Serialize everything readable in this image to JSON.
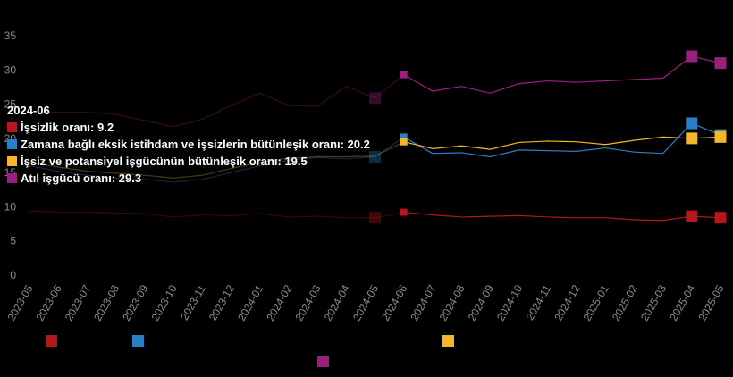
{
  "chart_data": {
    "type": "line",
    "x": [
      "2023-05",
      "2023-06",
      "2023-07",
      "2023-08",
      "2023-09",
      "2023-10",
      "2023-11",
      "2023-12",
      "2024-01",
      "2024-02",
      "2024-03",
      "2024-04",
      "2024-05",
      "2024-06",
      "2024-07",
      "2024-08",
      "2024-09",
      "2024-10",
      "2024-11",
      "2024-12",
      "2025-01",
      "2025-02",
      "2025-03",
      "2025-04",
      "2025-05"
    ],
    "ylim": [
      0,
      35
    ],
    "yticks": [
      "0",
      "5",
      "10",
      "15",
      "20",
      "25",
      "30",
      "35"
    ],
    "grid": false,
    "highlight_index": 13,
    "series": [
      {
        "key": "s1",
        "color": "#b5171c",
        "values": [
          9.4,
          9.2,
          9.2,
          9.1,
          9.0,
          8.5,
          8.8,
          8.7,
          9.0,
          8.5,
          8.6,
          8.4,
          8.4,
          9.2,
          8.8,
          8.5,
          8.6,
          8.7,
          8.5,
          8.4,
          8.4,
          8.1,
          8.0,
          8.6,
          8.4
        ]
      },
      {
        "key": "s2",
        "color": "#2a7fc7",
        "values": [
          16.0,
          15.2,
          14.6,
          14.2,
          14.0,
          13.6,
          14.0,
          15.0,
          16.0,
          16.8,
          17.2,
          17.0,
          17.3,
          20.2,
          17.8,
          17.9,
          17.3,
          18.3,
          18.2,
          18.1,
          18.6,
          18.0,
          17.8,
          22.2,
          20.5
        ]
      },
      {
        "key": "s3",
        "color": "#f5b62c",
        "values": [
          16.5,
          15.8,
          15.2,
          14.9,
          14.6,
          14.2,
          14.6,
          15.6,
          16.5,
          17.1,
          17.3,
          17.3,
          17.4,
          19.5,
          18.5,
          18.9,
          18.4,
          19.4,
          19.6,
          19.5,
          19.1,
          19.7,
          20.2,
          20.0,
          20.2
        ]
      },
      {
        "key": "s4",
        "color": "#9b1f7c",
        "values": [
          23.9,
          23.8,
          23.8,
          23.5,
          22.6,
          21.7,
          22.8,
          24.8,
          26.6,
          24.8,
          24.7,
          27.6,
          25.9,
          29.3,
          26.9,
          27.6,
          26.6,
          28.0,
          28.4,
          28.2,
          28.4,
          28.6,
          28.8,
          32.0,
          31.0
        ]
      }
    ],
    "markers": [
      {
        "series": "s1",
        "index": 12
      },
      {
        "series": "s1",
        "index": 23
      },
      {
        "series": "s1",
        "index": 24
      },
      {
        "series": "s2",
        "index": 12
      },
      {
        "series": "s2",
        "index": 23
      },
      {
        "series": "s2",
        "index": 24
      },
      {
        "series": "s3",
        "index": 23
      },
      {
        "series": "s3",
        "index": 24
      },
      {
        "series": "s4",
        "index": 12
      },
      {
        "series": "s4",
        "index": 23
      },
      {
        "series": "s4",
        "index": 24
      }
    ],
    "legend": {
      "placement": "bottom",
      "labels_visible": false
    },
    "tooltip": {
      "title": "2024-06",
      "rows": [
        {
          "series": "s1",
          "text": "İşsizlik oranı: 9.2"
        },
        {
          "series": "s2",
          "text": "Zamana bağlı eksik istihdam ve işsizlerin bütünleşik oranı: 20.2"
        },
        {
          "series": "s3",
          "text": "İşsiz ve potansiyel işgücünün bütünleşik oranı: 19.5"
        },
        {
          "series": "s4",
          "text": "Atıl işgücü oranı: 29.3"
        }
      ]
    }
  }
}
